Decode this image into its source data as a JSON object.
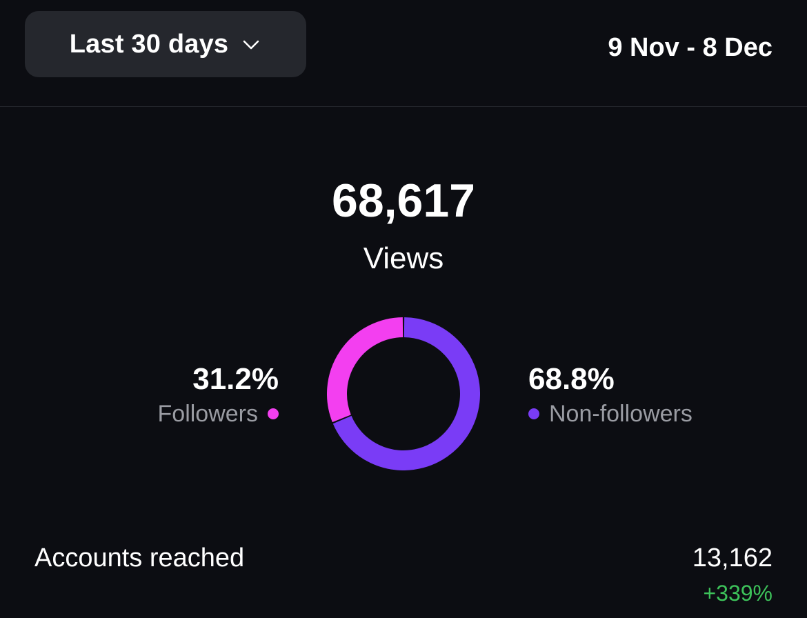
{
  "header": {
    "period_label": "Last 30 days",
    "period_icon": "chevron-down-icon",
    "date_range": "9 Nov - 8 Dec"
  },
  "summary": {
    "total": "68,617",
    "label": "Views"
  },
  "breakdown": {
    "followers": {
      "percent_text": "31.2%",
      "label": "Followers",
      "value": 31.2,
      "color": "#f33ff0"
    },
    "non_followers": {
      "percent_text": "68.8%",
      "label": "Non-followers",
      "value": 68.8,
      "color": "#7a3cf6"
    }
  },
  "metrics": {
    "accounts_reached": {
      "label": "Accounts reached",
      "value": "13,162",
      "change": "+339%",
      "change_color": "#3dc25a"
    }
  }
}
